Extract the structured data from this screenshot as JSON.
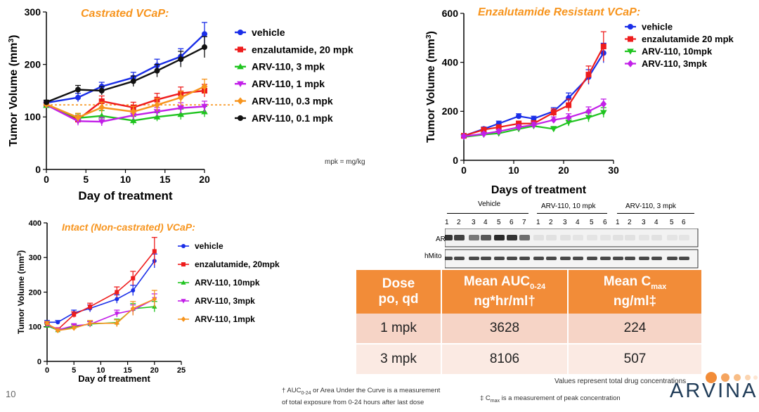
{
  "colors": {
    "blue": "#1a2ee8",
    "red": "#ee1c1c",
    "green": "#1fc41f",
    "purple": "#c21fe8",
    "orange": "#f7941d",
    "black": "#111111",
    "title_orange": "#f7941d",
    "table_header": "#f28c38",
    "brand": "#1f3b57"
  },
  "slide_number": "10",
  "mpk_note": "mpk = mg/kg",
  "chart_data": [
    {
      "id": "castrated",
      "type": "line",
      "title": "Castrated VCaP:",
      "xlabel": "Day of treatment",
      "ylabel": "Tumor Volume (mm3)",
      "xlim": [
        0,
        20
      ],
      "ylim": [
        0,
        300
      ],
      "xticks": [
        0,
        5,
        10,
        15,
        20
      ],
      "yticks": [
        0,
        100,
        200,
        300
      ],
      "reference_line": 123,
      "series": [
        {
          "name": "vehicle",
          "color": "#1a2ee8",
          "marker": "circle",
          "x": [
            0,
            4,
            7,
            11,
            14,
            17,
            20
          ],
          "y": [
            127,
            137,
            158,
            175,
            198,
            215,
            258
          ],
          "err": [
            4,
            8,
            8,
            10,
            12,
            15,
            22
          ]
        },
        {
          "name": "enzalutamide, 20 mpk",
          "color": "#ee1c1c",
          "marker": "square",
          "x": [
            0,
            4,
            7,
            11,
            14,
            17,
            20
          ],
          "y": [
            123,
            95,
            130,
            118,
            133,
            145,
            150
          ],
          "err": [
            4,
            8,
            10,
            10,
            12,
            12,
            12
          ]
        },
        {
          "name": "ARV-110, 3 mpk",
          "color": "#1fc41f",
          "marker": "triangle-up",
          "x": [
            0,
            4,
            7,
            11,
            14,
            17,
            20
          ],
          "y": [
            122,
            98,
            102,
            93,
            100,
            105,
            110
          ],
          "err": [
            4,
            8,
            10,
            8,
            8,
            10,
            10
          ]
        },
        {
          "name": "ARV-110, 1 mpk",
          "color": "#c21fe8",
          "marker": "triangle-down",
          "x": [
            0,
            4,
            7,
            11,
            14,
            17,
            20
          ],
          "y": [
            123,
            92,
            91,
            103,
            110,
            117,
            120
          ],
          "err": [
            4,
            8,
            8,
            8,
            8,
            10,
            10
          ]
        },
        {
          "name": "ARV-110, 0.3 mpk",
          "color": "#f7941d",
          "marker": "diamond",
          "x": [
            0,
            4,
            7,
            11,
            14,
            17,
            20
          ],
          "y": [
            124,
            99,
            118,
            110,
            123,
            137,
            158
          ],
          "err": [
            4,
            8,
            10,
            10,
            12,
            12,
            14
          ]
        },
        {
          "name": "ARV-110, 0.1 mpk",
          "color": "#111111",
          "marker": "circle",
          "x": [
            0,
            4,
            7,
            11,
            14,
            17,
            20
          ],
          "y": [
            128,
            152,
            150,
            168,
            188,
            210,
            233
          ],
          "err": [
            4,
            8,
            8,
            10,
            12,
            15,
            20
          ]
        }
      ]
    },
    {
      "id": "enza_resistant",
      "type": "line",
      "title": "Enzalutamide Resistant VCaP:",
      "xlabel": "Days of treatment",
      "ylabel": "Tumor Volume (mm3)",
      "xlim": [
        0,
        30
      ],
      "ylim": [
        0,
        600
      ],
      "xticks": [
        0,
        10,
        20,
        30
      ],
      "yticks": [
        0,
        200,
        400,
        600
      ],
      "series": [
        {
          "name": "vehicle",
          "color": "#1a2ee8",
          "marker": "circle",
          "x": [
            0,
            4,
            7,
            11,
            14,
            18,
            21,
            25,
            28
          ],
          "y": [
            100,
            128,
            150,
            180,
            170,
            200,
            255,
            340,
            438
          ],
          "err": [
            5,
            8,
            10,
            10,
            10,
            15,
            20,
            30,
            40
          ]
        },
        {
          "name": "enzalutamide 20 mpk",
          "color": "#ee1c1c",
          "marker": "square",
          "x": [
            0,
            4,
            7,
            11,
            14,
            18,
            21,
            25,
            28
          ],
          "y": [
            100,
            125,
            135,
            150,
            150,
            195,
            225,
            350,
            465
          ],
          "err": [
            5,
            8,
            10,
            10,
            12,
            15,
            25,
            35,
            60
          ]
        },
        {
          "name": "ARV-110, 10mpk",
          "color": "#1fc41f",
          "marker": "triangle-down",
          "x": [
            0,
            4,
            7,
            11,
            14,
            18,
            21,
            25,
            28
          ],
          "y": [
            95,
            105,
            110,
            128,
            140,
            128,
            155,
            175,
            195
          ],
          "err": [
            5,
            6,
            8,
            10,
            10,
            10,
            15,
            18,
            20
          ]
        },
        {
          "name": "ARV-110, 3mpk",
          "color": "#c21fe8",
          "marker": "diamond",
          "x": [
            0,
            4,
            7,
            11,
            14,
            18,
            21,
            25,
            28
          ],
          "y": [
            98,
            108,
            118,
            135,
            145,
            165,
            175,
            200,
            230
          ],
          "err": [
            5,
            6,
            8,
            10,
            10,
            12,
            15,
            18,
            20
          ]
        }
      ]
    },
    {
      "id": "intact",
      "type": "line",
      "title": "Intact (Non-castrated) VCaP:",
      "xlabel": "Day of treatment",
      "ylabel": "Tumor Volume (mm3)",
      "xlim": [
        0,
        25
      ],
      "ylim": [
        0,
        400
      ],
      "xticks": [
        0,
        5,
        10,
        15,
        20,
        25
      ],
      "yticks": [
        0,
        100,
        200,
        300,
        400
      ],
      "series": [
        {
          "name": "vehicle",
          "color": "#1a2ee8",
          "marker": "circle",
          "x": [
            0,
            2,
            5,
            8,
            13,
            16,
            20
          ],
          "y": [
            113,
            113,
            140,
            153,
            180,
            205,
            290
          ],
          "err": [
            5,
            5,
            8,
            10,
            12,
            15,
            20
          ]
        },
        {
          "name": "enzalutamide, 20mpk",
          "color": "#ee1c1c",
          "marker": "square",
          "x": [
            0,
            2,
            5,
            8,
            13,
            16,
            20
          ],
          "y": [
            108,
            92,
            135,
            158,
            200,
            240,
            318
          ],
          "err": [
            5,
            5,
            8,
            10,
            15,
            20,
            40
          ]
        },
        {
          "name": "ARV-110, 10mpk",
          "color": "#1fc41f",
          "marker": "triangle-up",
          "x": [
            0,
            2,
            5,
            8,
            13,
            16,
            20
          ],
          "y": [
            103,
            90,
            100,
            108,
            112,
            152,
            158
          ],
          "err": [
            5,
            5,
            6,
            8,
            10,
            15,
            15
          ]
        },
        {
          "name": "ARV-110, 3mpk",
          "color": "#c21fe8",
          "marker": "triangle-down",
          "x": [
            0,
            2,
            5,
            8,
            13,
            16,
            20
          ],
          "y": [
            106,
            91,
            103,
            107,
            138,
            148,
            180
          ],
          "err": [
            5,
            5,
            6,
            8,
            10,
            15,
            15
          ]
        },
        {
          "name": "ARV-110, 1mpk",
          "color": "#f7941d",
          "marker": "diamond",
          "x": [
            0,
            2,
            5,
            8,
            13,
            16,
            20
          ],
          "y": [
            110,
            89,
            96,
            110,
            110,
            153,
            180
          ],
          "err": [
            5,
            5,
            6,
            8,
            10,
            20,
            25
          ]
        }
      ]
    },
    {
      "id": "pk_table",
      "type": "table",
      "columns": [
        "Dose",
        "po, qd",
        "Mean AUC",
        "0-24",
        "ng*hr/ml†",
        "Mean C",
        "max",
        "ng/ml‡"
      ],
      "rows": [
        {
          "dose": "1 mpk",
          "auc": "3628",
          "cmax": "224"
        },
        {
          "dose": "3 mpk",
          "auc": "8106",
          "cmax": "507"
        }
      ]
    }
  ],
  "western_blot": {
    "groups": [
      "Vehicle",
      "ARV-110, 10 mpk",
      "ARV-110, 3 mpk"
    ],
    "lanes": [
      "1",
      "2",
      "3",
      "4",
      "5",
      "6",
      "7",
      "1",
      "2",
      "3",
      "4",
      "5",
      "6",
      "1",
      "2",
      "3",
      "4",
      "5",
      "6"
    ],
    "rows": [
      "AR",
      "hMito"
    ]
  },
  "table_header": {
    "dose_line1": "Dose",
    "dose_line2": "po, qd",
    "auc_line1": "Mean AUC",
    "auc_sub": "0-24",
    "auc_line2": "ng*hr/ml†",
    "cmax_line1": "Mean C",
    "cmax_sub": "max",
    "cmax_line2": "ng/ml‡"
  },
  "footnotes": {
    "auc_pre": "† AUC",
    "auc_sub": "0-24",
    "auc_post": " or Area Under the Curve is a measurement",
    "auc_line2": "of total exposure from 0-24 hours after last dose",
    "cmax_pre": "‡ C",
    "cmax_sub": "max",
    "cmax_post": " is a measurement of peak concentration",
    "values_note": "Values represent total drug concentrations"
  },
  "brand": {
    "name": "ARVINAS"
  }
}
